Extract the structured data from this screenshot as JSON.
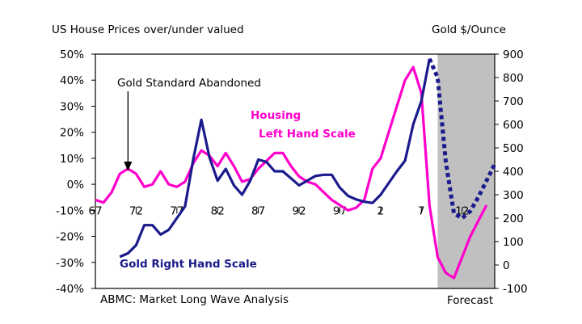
{
  "chart_data": {
    "type": "line",
    "title_left": "US House Prices over/under valued",
    "title_right": "Gold $/Ounce",
    "source_note": "ABMC: Market Long Wave Analysis",
    "forecast_label": "Forecast",
    "annotations": {
      "gold_standard": "Gold Standard Abandoned",
      "housing_line1": "Housing",
      "housing_line2": "Left Hand Scale",
      "gold_scale": "Gold Right Hand Scale"
    },
    "x_tick_labels": [
      "67",
      "72",
      "77",
      "82",
      "87",
      "92",
      "97",
      "2",
      "7",
      "12"
    ],
    "x_tick_years": [
      1967,
      1972,
      1977,
      1982,
      1987,
      1992,
      1997,
      2002,
      2007,
      2012
    ],
    "xlim": [
      1967,
      2016
    ],
    "forecast_start": 2009,
    "gold_standard_year": 1971,
    "y_left": {
      "ylim": [
        -40,
        50
      ],
      "ticks": [
        50,
        40,
        30,
        20,
        10,
        0,
        -10,
        -20,
        -30,
        -40
      ],
      "labels": [
        "50%",
        "40%",
        "30%",
        "20%",
        "10%",
        "0%",
        "-10%",
        "-20%",
        "-30%",
        "-40%"
      ]
    },
    "y_right": {
      "ylim": [
        -100,
        900
      ],
      "ticks": [
        900,
        800,
        700,
        600,
        500,
        400,
        300,
        200,
        100,
        0,
        -100
      ],
      "labels": [
        "900",
        "800",
        "700",
        "600",
        "500",
        "400",
        "300",
        "200",
        "100",
        "0",
        "-100"
      ]
    },
    "colors": {
      "housing": "#ff00cc",
      "gold": "#1a1a8c",
      "forecast_band": "#c0c0c0"
    },
    "series": [
      {
        "name": "Housing",
        "axis": "left",
        "x": [
          1967,
          1968,
          1969,
          1970,
          1971,
          1972,
          1973,
          1974,
          1975,
          1976,
          1977,
          1978,
          1979,
          1980,
          1981,
          1982,
          1983,
          1984,
          1985,
          1986,
          1987,
          1988,
          1989,
          1990,
          1991,
          1992,
          1993,
          1994,
          1995,
          1996,
          1997,
          1998,
          1999,
          2000,
          2001,
          2002,
          2003,
          2004,
          2005,
          2006,
          2007,
          2008,
          2009,
          2010,
          2011,
          2012,
          2013,
          2014,
          2015
        ],
        "y": [
          -6,
          -7,
          -3,
          4,
          6,
          4,
          -1,
          0,
          5,
          0,
          -1,
          1,
          8,
          13,
          11,
          7,
          12,
          7,
          1,
          2,
          6,
          9,
          12,
          12,
          7,
          3,
          1,
          0,
          -3,
          -6,
          -8,
          -10,
          -9,
          -6,
          6,
          10,
          20,
          30,
          40,
          45,
          35,
          -8,
          -28,
          -34,
          -36,
          -28,
          -20,
          -14,
          -8
        ]
      },
      {
        "name": "Gold",
        "axis": "right",
        "x": [
          1970,
          1971,
          1972,
          1973,
          1974,
          1975,
          1976,
          1977,
          1978,
          1979,
          1980,
          1981,
          1982,
          1983,
          1984,
          1985,
          1986,
          1987,
          1988,
          1989,
          1990,
          1991,
          1992,
          1993,
          1994,
          1995,
          1996,
          1997,
          1998,
          1999,
          2000,
          2001,
          2002,
          2003,
          2004,
          2005,
          2006,
          2007,
          2008
        ],
        "y": [
          35,
          50,
          85,
          170,
          170,
          130,
          150,
          200,
          250,
          450,
          620,
          460,
          360,
          410,
          340,
          300,
          360,
          450,
          440,
          400,
          400,
          370,
          340,
          360,
          380,
          385,
          385,
          330,
          295,
          280,
          270,
          265,
          300,
          350,
          400,
          445,
          600,
          700,
          880
        ]
      },
      {
        "name": "Gold forecast",
        "axis": "right",
        "style": "dotted",
        "x": [
          2008,
          2009,
          2010,
          2011,
          2012,
          2013,
          2014,
          2015,
          2016
        ],
        "y": [
          880,
          800,
          440,
          220,
          200,
          230,
          290,
          360,
          430
        ]
      }
    ]
  }
}
